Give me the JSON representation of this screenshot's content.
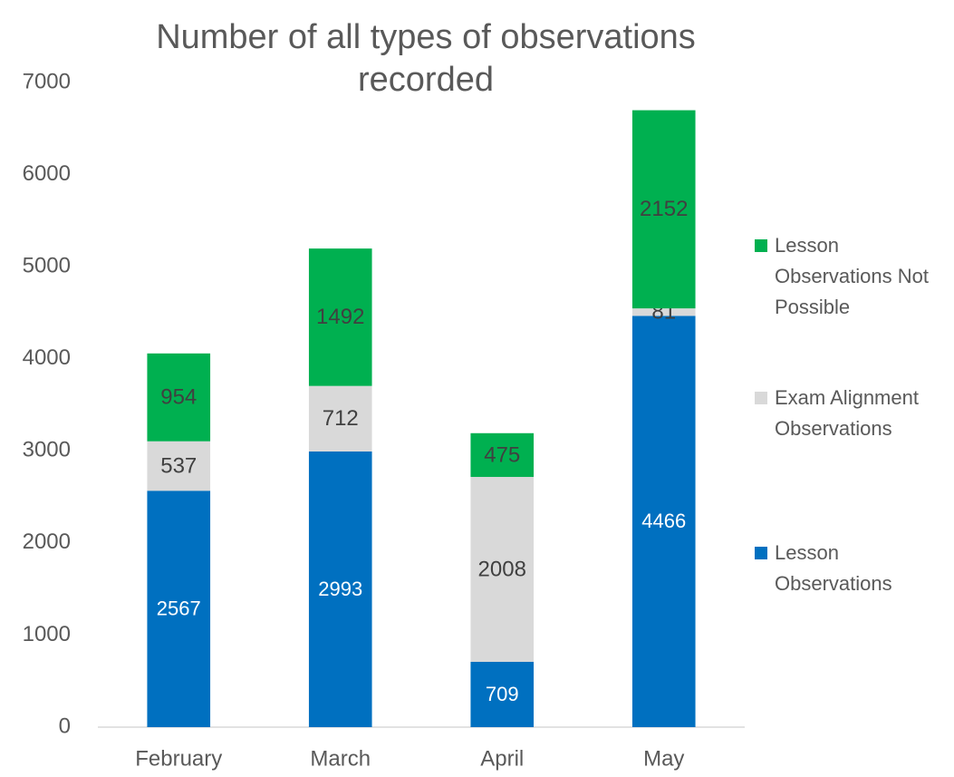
{
  "chart_data": {
    "type": "stacked_bar",
    "title": "Number of all types of observations recorded",
    "categories": [
      "February",
      "March",
      "April",
      "May"
    ],
    "series": [
      {
        "name": "Lesson Observations",
        "color": "#0070c0",
        "values": [
          2567,
          2993,
          709,
          4466
        ]
      },
      {
        "name": "Exam Alignment Observations",
        "color": "#d9d9d9",
        "values": [
          537,
          712,
          2008,
          81
        ]
      },
      {
        "name": "Lesson Observations Not Possible",
        "color": "#00b050",
        "values": [
          954,
          1492,
          475,
          2152
        ]
      }
    ],
    "ylim": [
      0,
      7000
    ],
    "yticks": [
      0,
      1000,
      2000,
      3000,
      4000,
      5000,
      6000,
      7000
    ],
    "grid": false,
    "legend": "right"
  }
}
